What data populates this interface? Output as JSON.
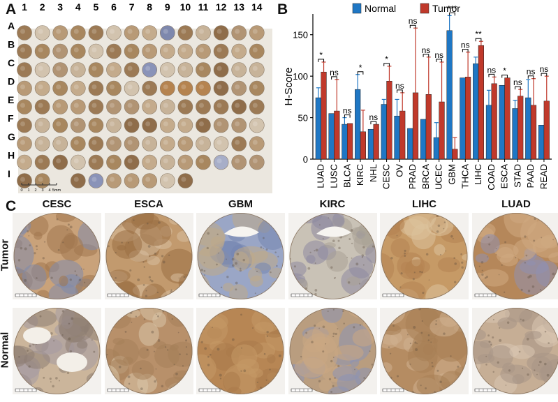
{
  "panels": {
    "a": "A",
    "b": "B",
    "c": "C"
  },
  "tma": {
    "columns": [
      "1",
      "2",
      "3",
      "4",
      "5",
      "6",
      "7",
      "8",
      "9",
      "10",
      "11",
      "12",
      "13",
      "14"
    ],
    "rows": [
      "A",
      "B",
      "C",
      "D",
      "E",
      "F",
      "G",
      "H",
      "I"
    ],
    "scale": {
      "ticks": [
        "0",
        "1",
        "2",
        "3",
        "4",
        "5mm"
      ]
    }
  },
  "colors": {
    "normal": "#1f77c4",
    "tumor": "#c0392b",
    "stain_brown": "#a67c4f",
    "stain_blue": "#6f7fb0"
  },
  "chart_data": {
    "type": "bar",
    "ylabel": "H-Score",
    "xlabel": "",
    "ylim": [
      0,
      175
    ],
    "yticks": [
      0,
      50,
      100,
      150
    ],
    "legend": "top",
    "categories": [
      "LUAD",
      "LUSC",
      "BLCA",
      "KIRC",
      "NHL",
      "CESC",
      "OV",
      "PRAD",
      "BRCA",
      "UCEC",
      "GBM",
      "THCA",
      "LIHC",
      "COAD",
      "ESCA",
      "STAD",
      "PAAD",
      "READ"
    ],
    "series": [
      {
        "name": "Normal",
        "color": "#1f77c4",
        "values": [
          74,
          55,
          42,
          84,
          36,
          66,
          52,
          37,
          48,
          26,
          155,
          98,
          115,
          65,
          89,
          61,
          74,
          41
        ],
        "errors": [
          12,
          0,
          8,
          18,
          0,
          6,
          20,
          0,
          0,
          18,
          18,
          0,
          8,
          18,
          0,
          10,
          22,
          0
        ]
      },
      {
        "name": "Tumor",
        "color": "#c0392b",
        "values": [
          105,
          58,
          43,
          33,
          42,
          94,
          58,
          80,
          78,
          69,
          12,
          99,
          137,
          91,
          98,
          76,
          65,
          70
        ],
        "errors": [
          12,
          38,
          0,
          26,
          0,
          18,
          22,
          78,
          45,
          48,
          14,
          30,
          5,
          8,
          0,
          8,
          32,
          30
        ]
      }
    ],
    "significance": [
      "*",
      "ns",
      "ns",
      "*",
      "ns",
      "*",
      "ns",
      "ns",
      "ns",
      "ns",
      "***",
      "ns",
      "**",
      "ns",
      "*",
      "ns",
      "ns",
      "ns"
    ]
  },
  "micrographs": {
    "cancer_types": [
      "CESC",
      "ESCA",
      "GBM",
      "KIRC",
      "LIHC",
      "LUAD"
    ],
    "rows": [
      "Tumor",
      "Normal"
    ]
  }
}
